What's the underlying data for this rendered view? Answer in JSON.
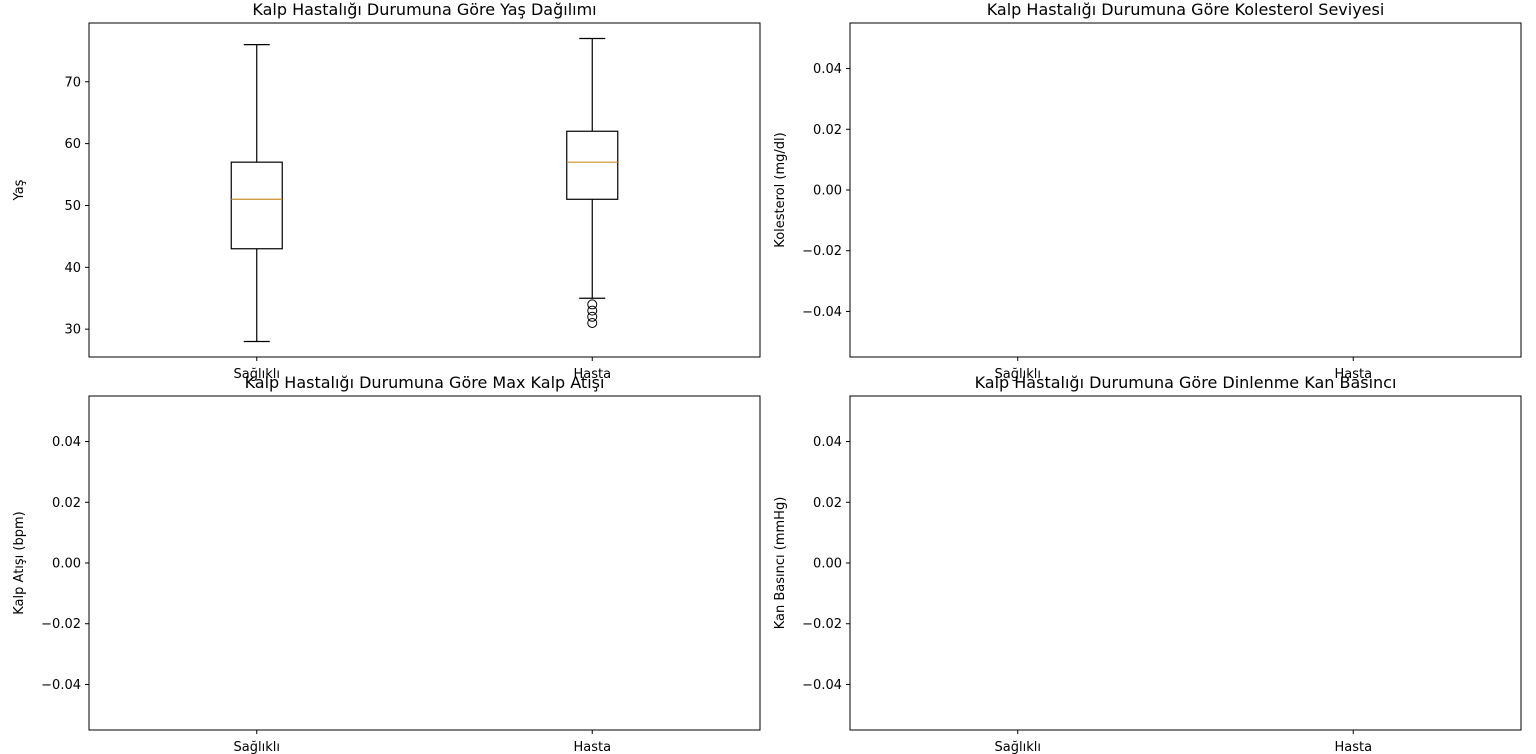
{
  "chart_data": [
    {
      "type": "box",
      "title": "Kalp Hastalığı Durumuna Göre Yaş Dağılımı",
      "xlabel": "",
      "ylabel": "Yaş",
      "categories": [
        "Sağlıklı",
        "Hasta"
      ],
      "ylim": [
        25.5,
        79.5
      ],
      "yticks": [
        30,
        40,
        50,
        60,
        70
      ],
      "ytick_labels": [
        "30",
        "40",
        "50",
        "60",
        "70"
      ],
      "boxes": [
        {
          "category": "Sağlıklı",
          "whisker_low": 28,
          "q1": 43,
          "median": 51,
          "q3": 57,
          "whisker_high": 76,
          "outliers": []
        },
        {
          "category": "Hasta",
          "whisker_low": 35,
          "q1": 51,
          "median": 57,
          "q3": 62,
          "whisker_high": 77,
          "outliers": [
            34,
            33,
            32,
            31
          ]
        }
      ],
      "colors": {
        "box": "#000000",
        "median": "#c8902a"
      }
    },
    {
      "type": "box",
      "title": "Kalp Hastalığı Durumuna Göre Kolesterol Seviyesi",
      "xlabel": "",
      "ylabel": "Kolesterol (mg/dl)",
      "categories": [
        "Sağlıklı",
        "Hasta"
      ],
      "ylim": [
        -0.055,
        0.055
      ],
      "yticks": [
        -0.04,
        -0.02,
        0.0,
        0.02,
        0.04
      ],
      "ytick_labels": [
        "−0.04",
        "−0.02",
        "0.00",
        "0.02",
        "0.04"
      ],
      "boxes": []
    },
    {
      "type": "box",
      "title": "Kalp Hastalığı Durumuna Göre Max Kalp Atışı",
      "xlabel": "",
      "ylabel": "Kalp Atışı (bpm)",
      "categories": [
        "Sağlıklı",
        "Hasta"
      ],
      "ylim": [
        -0.055,
        0.055
      ],
      "yticks": [
        -0.04,
        -0.02,
        0.0,
        0.02,
        0.04
      ],
      "ytick_labels": [
        "−0.04",
        "−0.02",
        "0.00",
        "0.02",
        "0.04"
      ],
      "boxes": []
    },
    {
      "type": "box",
      "title": "Kalp Hastalığı Durumuna Göre Dinlenme Kan Basıncı",
      "xlabel": "",
      "ylabel": "Kan Basıncı (mmHg)",
      "categories": [
        "Sağlıklı",
        "Hasta"
      ],
      "ylim": [
        -0.055,
        0.055
      ],
      "yticks": [
        -0.04,
        -0.02,
        0.0,
        0.02,
        0.04
      ],
      "ytick_labels": [
        "−0.04",
        "−0.02",
        "0.00",
        "0.02",
        "0.04"
      ],
      "boxes": []
    }
  ]
}
